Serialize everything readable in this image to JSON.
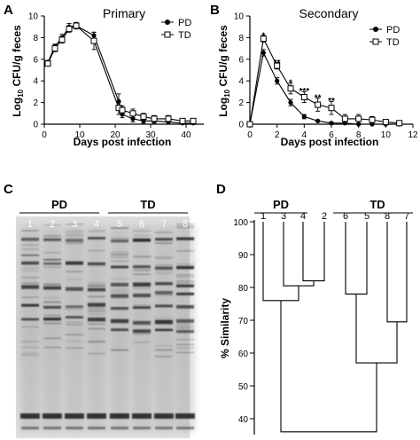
{
  "panels": {
    "a": "A",
    "b": "B",
    "c": "C",
    "d": "D"
  },
  "chart_data": [
    {
      "type": "line",
      "title": "Primary",
      "xlabel": "Days post infection",
      "ylabel_main": "Log",
      "ylabel_sub": "10",
      "ylabel_rest": " CFU/g feces",
      "xlim": [
        0,
        45
      ],
      "ylim": [
        0,
        10
      ],
      "xticks": [
        0,
        10,
        20,
        30,
        40
      ],
      "yticks": [
        0,
        2,
        4,
        6,
        8,
        10
      ],
      "legend_position": "top-right",
      "series": [
        {
          "name": "PD",
          "marker": "filled-circle",
          "x": [
            1,
            3,
            5,
            7,
            9,
            14,
            21,
            22,
            25,
            28,
            31,
            35,
            39,
            42
          ],
          "y": [
            5.7,
            7.2,
            8.0,
            9.0,
            9.1,
            8.2,
            2.1,
            0.9,
            0.5,
            0.3,
            0.3,
            0.2,
            0.1,
            0.1
          ],
          "err": [
            0.2,
            0.2,
            0.3,
            0.3,
            0.3,
            0.3,
            0.7,
            0.3,
            0.3,
            0.2,
            0.2,
            0.2,
            0.1,
            0.1
          ]
        },
        {
          "name": "TD",
          "marker": "open-square",
          "x": [
            1,
            3,
            5,
            7,
            9,
            14,
            21,
            22,
            25,
            28,
            31,
            35,
            39,
            42
          ],
          "y": [
            5.6,
            7.0,
            7.8,
            8.8,
            9.1,
            7.7,
            1.5,
            1.3,
            1.0,
            0.7,
            0.5,
            0.5,
            0.3,
            0.3
          ],
          "err": [
            0.2,
            0.3,
            0.3,
            0.3,
            0.3,
            0.8,
            0.6,
            0.4,
            0.4,
            0.3,
            0.3,
            0.3,
            0.2,
            0.2
          ]
        }
      ]
    },
    {
      "type": "line",
      "title": "Secondary",
      "xlabel": "Days post infection",
      "ylabel_main": "Log",
      "ylabel_sub": "10",
      "ylabel_rest": " CFU/g feces",
      "xlim": [
        0,
        12
      ],
      "ylim": [
        0,
        10
      ],
      "xticks": [
        0,
        2,
        4,
        6,
        8,
        10,
        12
      ],
      "yticks": [
        0,
        2,
        4,
        6,
        8,
        10
      ],
      "legend_position": "top-right",
      "series": [
        {
          "name": "PD",
          "marker": "filled-circle",
          "x": [
            0,
            1,
            2,
            3,
            4,
            5,
            6,
            7,
            8,
            9,
            10,
            11
          ],
          "y": [
            0,
            6.6,
            4.0,
            2.0,
            0.7,
            0.3,
            0.1,
            0.1,
            0.0,
            0.0,
            0.0,
            0.0
          ],
          "err": [
            0,
            0.3,
            0.3,
            0.3,
            0.2,
            0.1,
            0.1,
            0.1,
            0,
            0,
            0,
            0
          ]
        },
        {
          "name": "TD",
          "marker": "open-square",
          "x": [
            0,
            1,
            2,
            3,
            4,
            5,
            6,
            7,
            8,
            9,
            10,
            11
          ],
          "y": [
            0,
            7.9,
            5.4,
            3.3,
            2.5,
            1.8,
            1.5,
            0.5,
            0.5,
            0.4,
            0.2,
            0.1
          ],
          "err": [
            0,
            0.3,
            0.3,
            0.5,
            0.5,
            0.6,
            0.6,
            0.4,
            0.4,
            0.3,
            0.2,
            0.1
          ]
        }
      ],
      "annotations": [
        {
          "x": 1,
          "y": 8.25,
          "text": "*"
        },
        {
          "x": 2,
          "y": 5.75,
          "text": "**"
        },
        {
          "x": 3,
          "y": 3.9,
          "text": "*"
        },
        {
          "x": 4,
          "y": 3.1,
          "text": "***"
        },
        {
          "x": 5,
          "y": 2.5,
          "text": "**"
        },
        {
          "x": 6,
          "y": 2.2,
          "text": "**"
        }
      ]
    },
    {
      "type": "table",
      "chart_kind": "dendrogram",
      "ylabel": "% Similarity",
      "ylim": [
        35,
        100
      ],
      "yticks": [
        40,
        50,
        60,
        70,
        80,
        90,
        100
      ],
      "groups": [
        {
          "label": "PD",
          "leaves": [
            "1",
            "3",
            "4",
            "2"
          ]
        },
        {
          "label": "TD",
          "leaves": [
            "6",
            "5",
            "8",
            "7"
          ]
        }
      ],
      "merges": [
        {
          "a": "4",
          "b": "2",
          "similarity": 82
        },
        {
          "a": "3",
          "b": "4+2",
          "similarity": 80.5
        },
        {
          "a": "1",
          "b": "3+4+2",
          "similarity": 76
        },
        {
          "a": "8",
          "b": "7",
          "similarity": 69.5
        },
        {
          "a": "6",
          "b": "5",
          "similarity": 78
        },
        {
          "a": "6+5",
          "b": "8+7",
          "similarity": 57
        },
        {
          "a": "PD",
          "b": "TD",
          "similarity": 36
        }
      ]
    }
  ],
  "gel": {
    "groups": [
      {
        "label": "PD"
      },
      {
        "label": "TD"
      }
    ],
    "lanes": [
      "1",
      "2",
      "3",
      "4",
      "5",
      "6",
      "7",
      "8"
    ]
  }
}
